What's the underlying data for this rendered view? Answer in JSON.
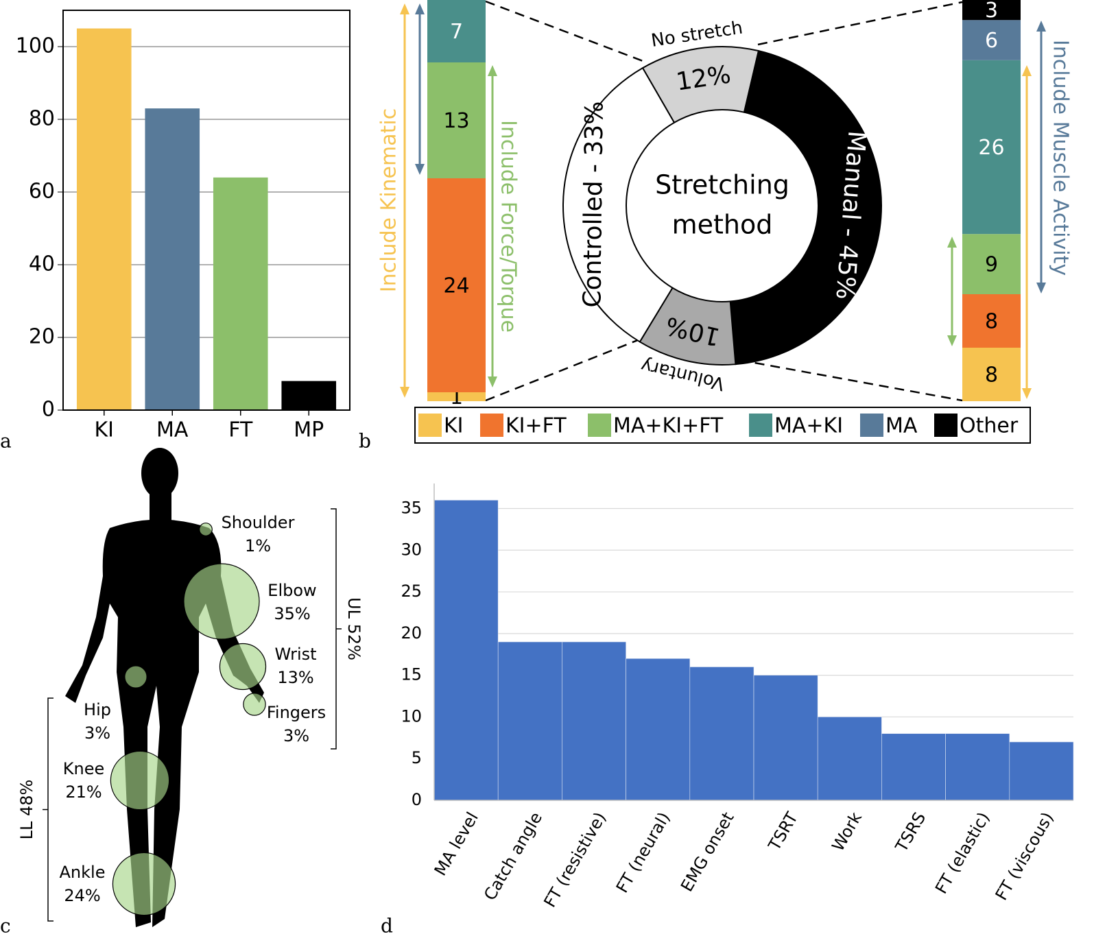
{
  "chart_data": [
    {
      "type": "bar",
      "panel": "a",
      "categories": [
        "KI",
        "MA",
        "FT",
        "MP"
      ],
      "values": [
        105,
        83,
        64,
        8
      ],
      "colors": [
        "#f6c350",
        "#587a99",
        "#8cbf6a",
        "#000000"
      ],
      "ylim": [
        0,
        110
      ],
      "yticks": [
        0,
        20,
        40,
        60,
        80,
        100
      ],
      "grid": true
    },
    {
      "type": "donut",
      "panel": "b",
      "labels": [
        "No stretch",
        null,
        "Voluntary",
        null
      ],
      "values": [
        12,
        45,
        10,
        33
      ],
      "value_labels": [
        "12%",
        "Manual - 45%",
        "10%",
        "Controlled - 33%"
      ],
      "colors": [
        "#d3d3d3",
        "#000000",
        "#a9a9a9",
        "#ffffff"
      ],
      "center_label": [
        "Stretching",
        "method"
      ]
    },
    {
      "type": "stacked_bar",
      "series": [
        {
          "name": "KI",
          "color": "#f6c350",
          "values": [
            1,
            8
          ]
        },
        {
          "name": "KI+FT",
          "color": "#f0742e",
          "values": [
            24,
            8
          ]
        },
        {
          "name": "MA+KI+FT",
          "color": "#8cbf6a",
          "values": [
            13,
            9
          ]
        },
        {
          "name": "MA+KI",
          "color": "#4a8f8a",
          "values": [
            7,
            26
          ]
        },
        {
          "name": "MA",
          "color": "#587a99",
          "values": [
            null,
            6
          ]
        },
        {
          "name": "Other",
          "color": "#000000",
          "values": [
            null,
            3
          ]
        }
      ],
      "annotations": [
        "Include Kinematic",
        "Include Force/Torque",
        "Include Muscle Activity"
      ]
    },
    {
      "type": "bubble",
      "panel": "c",
      "categories": [
        "Shoulder",
        "Elbow",
        "Wrist",
        "Fingers",
        "Hip",
        "Knee",
        "Ankle"
      ],
      "values": [
        1,
        35,
        13,
        3,
        3,
        21,
        24
      ],
      "value_labels": [
        "1%",
        "35%",
        "13%",
        "3%",
        "3%",
        "21%",
        "24%"
      ],
      "color": "#a8d58a",
      "groups": [
        {
          "label": "UL 52%",
          "value": 52
        },
        {
          "label": "LL 48%",
          "value": 48
        }
      ]
    },
    {
      "type": "bar",
      "panel": "d",
      "categories": [
        "MA level",
        "Catch angle",
        "FT (resistive)",
        "FT (neural)",
        "EMG onset",
        "TSRT",
        "Work",
        "TSRS",
        "FT (elastic)",
        "FT (viscous)"
      ],
      "values": [
        36,
        19,
        19,
        17,
        16,
        15,
        10,
        8,
        8,
        7
      ],
      "color": "#4472c4",
      "ylim": [
        0,
        38
      ],
      "yticks": [
        0,
        5,
        10,
        15,
        20,
        25,
        30,
        35
      ],
      "grid": true
    }
  ]
}
